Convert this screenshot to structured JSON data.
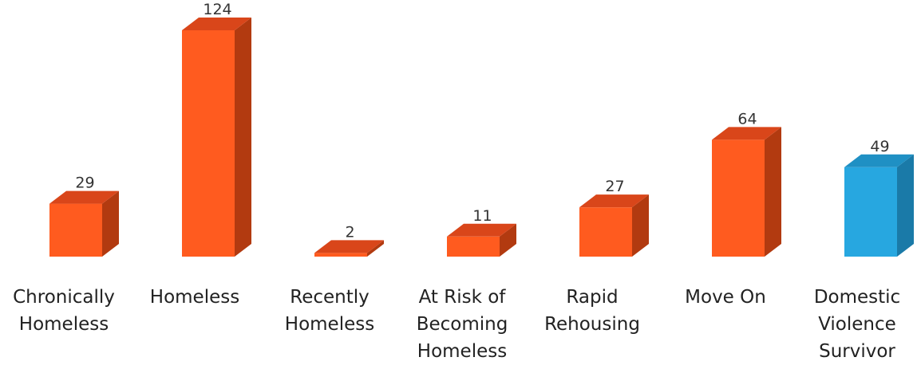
{
  "chart_data": {
    "type": "bar",
    "style": "3d-column",
    "categories": [
      [
        "Chronically",
        "Homeless"
      ],
      [
        "Homeless"
      ],
      [
        "Recently",
        "Homeless"
      ],
      [
        "At Risk of",
        "Becoming",
        "Homeless"
      ],
      [
        "Rapid",
        "Rehousing"
      ],
      [
        "Move On"
      ],
      [
        "Domestic",
        "Violence",
        "Survivor"
      ]
    ],
    "values": [
      29,
      124,
      2,
      11,
      27,
      64,
      49
    ],
    "data_labels": [
      "29",
      "124",
      "2",
      "11",
      "27",
      "64",
      "49"
    ],
    "colors": [
      "#FF5B1F",
      "#FF5B1F",
      "#FF5B1F",
      "#FF5B1F",
      "#FF5B1F",
      "#FF5B1F",
      "#27A7E0"
    ],
    "side_colors": [
      "#B23A10",
      "#B23A10",
      "#B23A10",
      "#B23A10",
      "#B23A10",
      "#B23A10",
      "#1A7AA8"
    ],
    "top_colors": [
      "#D9461A",
      "#D9461A",
      "#D9461A",
      "#D9461A",
      "#D9461A",
      "#D9461A",
      "#1F90C4"
    ],
    "ylim": [
      0,
      124
    ],
    "grid": false,
    "legend": "none",
    "title": "",
    "xlabel": "",
    "ylabel": ""
  }
}
